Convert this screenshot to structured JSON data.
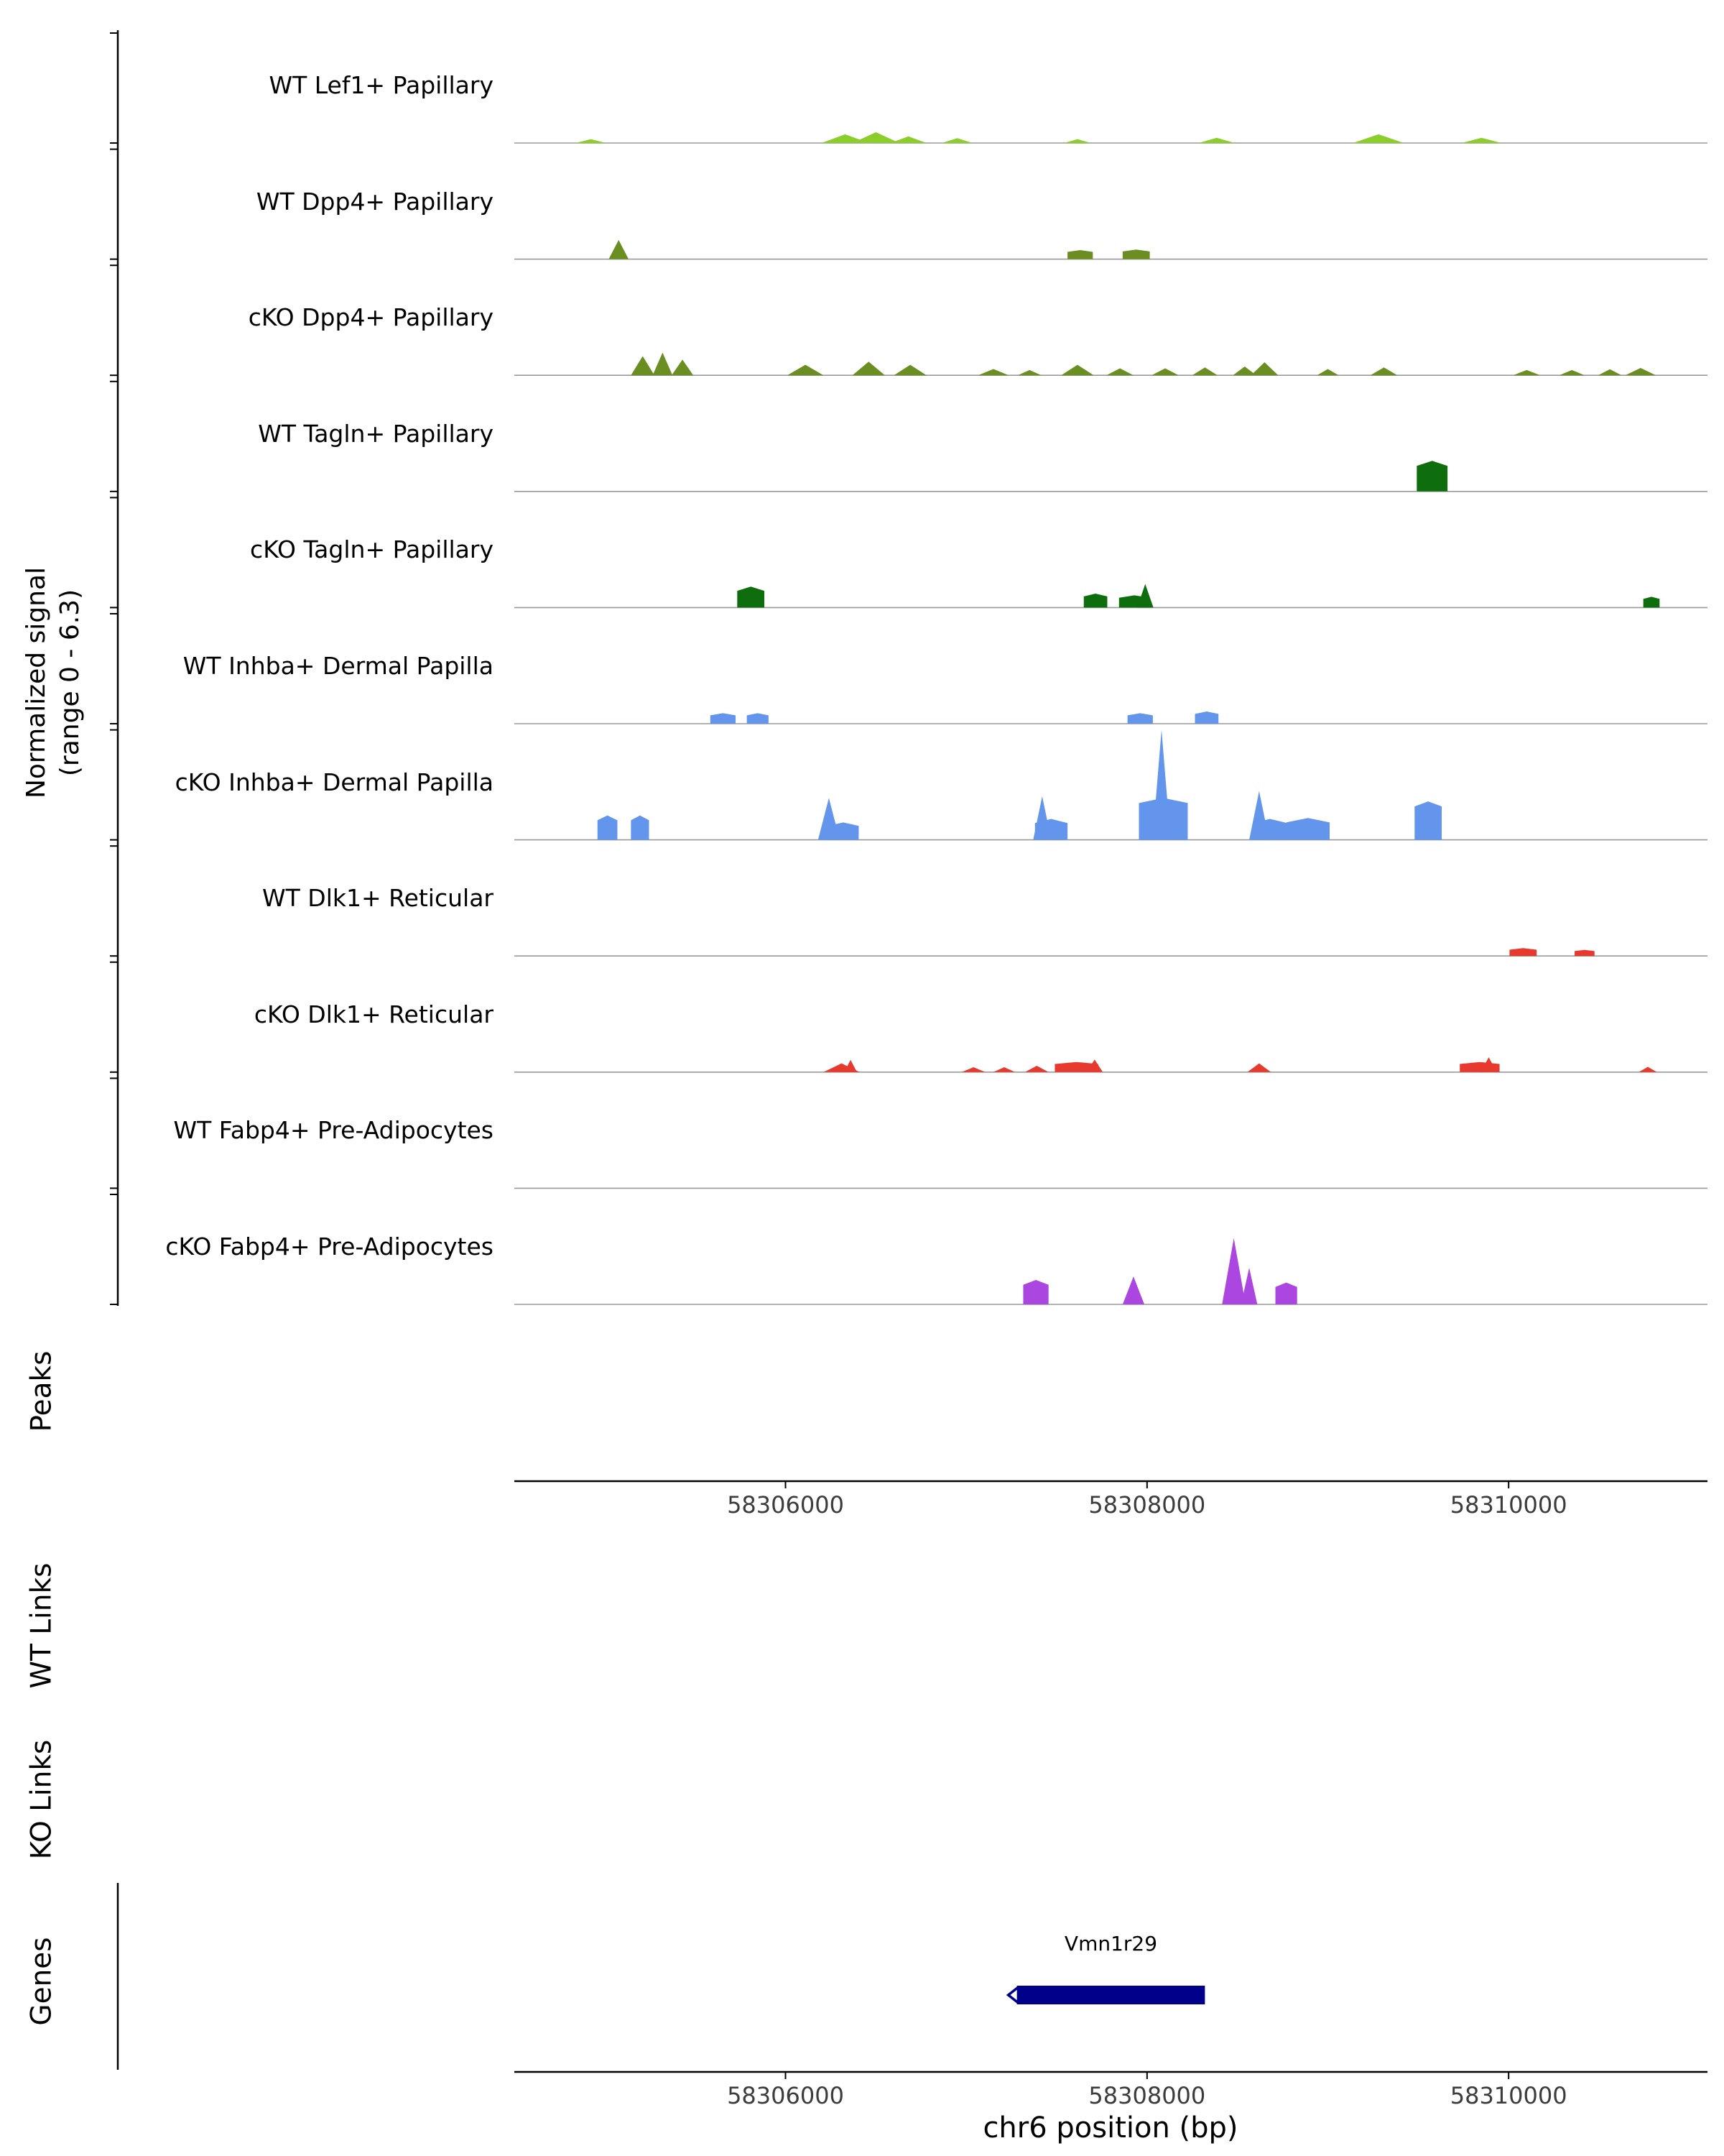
{
  "figure": {
    "y_axis_label_line1": "Normalized signal",
    "y_axis_label_line2": "(range 0 - 6.3)",
    "section_labels": {
      "peaks": "Peaks",
      "wt_links": "WT Links",
      "ko_links": "KO Links",
      "genes": "Genes"
    },
    "x_axis_label": "chr6 position (bp)"
  },
  "chart_data": {
    "type": "area",
    "title": "",
    "chromosome": "chr6",
    "xlim": [
      58304500,
      58311100
    ],
    "track_ylim": [
      0,
      6.3
    ],
    "x_ticks": [
      58306000,
      58308000,
      58310000
    ],
    "x_tick_labels": [
      "58306000",
      "58308000",
      "58310000"
    ],
    "peak_format": "[center_bp, width_bp, height_signal_0_to_6.3, shape(t=triangle,b=block)]",
    "tracks": [
      {
        "label": "WT Lef1+ Papillary",
        "color": "#8bce29",
        "peaks": [
          [
            58304923,
            170,
            0.22,
            "t"
          ],
          [
            58306330,
            260,
            0.5,
            "t"
          ],
          [
            58306500,
            260,
            0.62,
            "t"
          ],
          [
            58306680,
            200,
            0.38,
            "t"
          ],
          [
            58306950,
            170,
            0.28,
            "t"
          ],
          [
            58307615,
            150,
            0.22,
            "t"
          ],
          [
            58308385,
            200,
            0.3,
            "t"
          ],
          [
            58309280,
            280,
            0.5,
            "t"
          ],
          [
            58309850,
            220,
            0.3,
            "t"
          ]
        ]
      },
      {
        "label": "WT Dpp4+ Papillary",
        "color": "#6b8e23",
        "peaks": [
          [
            58305077,
            110,
            1.1,
            "t"
          ],
          [
            58307630,
            140,
            0.52,
            "b"
          ],
          [
            58307940,
            150,
            0.55,
            "b"
          ]
        ]
      },
      {
        "label": "cKO Dpp4+ Papillary",
        "color": "#6b8e23",
        "peaks": [
          [
            58305210,
            130,
            1.1,
            "t"
          ],
          [
            58305320,
            110,
            1.3,
            "t"
          ],
          [
            58305430,
            120,
            0.9,
            "t"
          ],
          [
            58306110,
            200,
            0.6,
            "t"
          ],
          [
            58306460,
            180,
            0.78,
            "t"
          ],
          [
            58306690,
            180,
            0.6,
            "t"
          ],
          [
            58307150,
            170,
            0.36,
            "t"
          ],
          [
            58307350,
            130,
            0.3,
            "t"
          ],
          [
            58307615,
            180,
            0.6,
            "t"
          ],
          [
            58307850,
            150,
            0.4,
            "t"
          ],
          [
            58308100,
            150,
            0.4,
            "t"
          ],
          [
            58308320,
            140,
            0.45,
            "t"
          ],
          [
            58308540,
            130,
            0.5,
            "t"
          ],
          [
            58308650,
            150,
            0.75,
            "t"
          ],
          [
            58309000,
            120,
            0.36,
            "t"
          ],
          [
            58309310,
            150,
            0.45,
            "t"
          ],
          [
            58310100,
            150,
            0.3,
            "t"
          ],
          [
            58310350,
            140,
            0.3,
            "t"
          ],
          [
            58310560,
            130,
            0.35,
            "t"
          ],
          [
            58310730,
            170,
            0.42,
            "t"
          ]
        ]
      },
      {
        "label": "WT Tagln+ Papillary",
        "color": "#0e6e0e",
        "peaks": [
          [
            58309577,
            170,
            1.75,
            "b"
          ]
        ]
      },
      {
        "label": "cKO Tagln+ Papillary",
        "color": "#0e6e0e",
        "peaks": [
          [
            58305808,
            150,
            1.2,
            "b"
          ],
          [
            58307715,
            130,
            0.8,
            "b"
          ],
          [
            58307930,
            170,
            0.7,
            "b"
          ],
          [
            58307990,
            90,
            1.35,
            "t"
          ],
          [
            58310790,
            90,
            0.62,
            "b"
          ]
        ]
      },
      {
        "label": "WT Inhba+ Dermal Papilla",
        "color": "#6495ed",
        "peaks": [
          [
            58305654,
            140,
            0.6,
            "b"
          ],
          [
            58305846,
            120,
            0.6,
            "b"
          ],
          [
            58307962,
            140,
            0.6,
            "b"
          ],
          [
            58308330,
            130,
            0.7,
            "b"
          ]
        ]
      },
      {
        "label": "cKO Inhba+ Dermal Papilla",
        "color": "#6495ed",
        "peaks": [
          [
            58305015,
            110,
            1.4,
            "b"
          ],
          [
            58305195,
            100,
            1.4,
            "b"
          ],
          [
            58306240,
            120,
            2.4,
            "t"
          ],
          [
            58306320,
            170,
            1.0,
            "b"
          ],
          [
            58307420,
            100,
            2.5,
            "t"
          ],
          [
            58307470,
            180,
            1.2,
            "b"
          ],
          [
            58308090,
            270,
            2.4,
            "b"
          ],
          [
            58308080,
            100,
            6.3,
            "t"
          ],
          [
            58308620,
            110,
            2.8,
            "t"
          ],
          [
            58308680,
            190,
            1.2,
            "b"
          ],
          [
            58308890,
            240,
            1.25,
            "b"
          ],
          [
            58309555,
            150,
            2.2,
            "b"
          ]
        ]
      },
      {
        "label": "WT Dlk1+ Reticular",
        "color": "#e8392f",
        "peaks": [
          [
            58310080,
            150,
            0.45,
            "b"
          ],
          [
            58310420,
            110,
            0.35,
            "b"
          ]
        ]
      },
      {
        "label": "cKO Dlk1+ Reticular",
        "color": "#e8392f",
        "peaks": [
          [
            58306310,
            200,
            0.5,
            "t"
          ],
          [
            58306360,
            70,
            0.7,
            "t"
          ],
          [
            58307040,
            130,
            0.28,
            "t"
          ],
          [
            58307210,
            120,
            0.28,
            "t"
          ],
          [
            58307390,
            130,
            0.36,
            "t"
          ],
          [
            58307610,
            240,
            0.58,
            "b"
          ],
          [
            58307710,
            90,
            0.72,
            "t"
          ],
          [
            58308620,
            130,
            0.5,
            "t"
          ],
          [
            58309840,
            220,
            0.58,
            "b"
          ],
          [
            58309890,
            90,
            0.85,
            "t"
          ],
          [
            58310770,
            100,
            0.3,
            "t"
          ]
        ]
      },
      {
        "label": "WT Fabp4+ Pre-Adipocytes",
        "color": "#ab47e0",
        "peaks": []
      },
      {
        "label": "cKO Fabp4+ Pre-Adipocytes",
        "color": "#ab47e0",
        "peaks": [
          [
            58307385,
            140,
            1.4,
            "b"
          ],
          [
            58307925,
            120,
            1.6,
            "t"
          ],
          [
            58308480,
            130,
            3.8,
            "t"
          ],
          [
            58308565,
            90,
            2.1,
            "t"
          ],
          [
            58308770,
            120,
            1.25,
            "b"
          ]
        ]
      }
    ],
    "link_sections": {
      "wt_links": [],
      "ko_links": []
    },
    "genes": [
      {
        "name": "Vmn1r29",
        "start": 58307280,
        "end": 58308320,
        "strand": "-",
        "color": "#00008b"
      }
    ]
  }
}
